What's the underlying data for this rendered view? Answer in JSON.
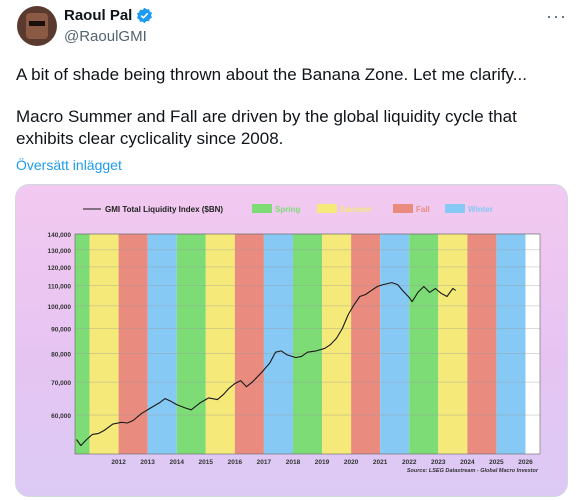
{
  "tweet": {
    "author_name": "Raoul Pal",
    "handle": "@RaoulGMI",
    "more_glyph": "···",
    "text_line1": "A bit of shade being thrown about the Banana Zone. Let me clarify...",
    "text_line2": "Macro Summer and Fall are driven by the global liquidity cycle that exhibits clear cyclicality since 2008.",
    "translate_label": "Översätt inlägget"
  },
  "colors": {
    "verified": "#1d9bf0",
    "spring": "#7edc77",
    "summer": "#f5e97a",
    "fall": "#e98b7f",
    "winter": "#86c9f5",
    "line": "#1a1a1a"
  },
  "chart_data": {
    "type": "line",
    "title": "GMI Total Liquidity Index ($BN)",
    "legend": [
      {
        "name": "Spring",
        "color": "#7edc77"
      },
      {
        "name": "Summer",
        "color": "#f5e97a"
      },
      {
        "name": "Fall",
        "color": "#e98b7f"
      },
      {
        "name": "Winter",
        "color": "#86c9f5"
      }
    ],
    "legend_placement": "top",
    "source": "Source: LSEG Datastream - Global Macro Investor",
    "y_scale": "log",
    "ylim": [
      50000,
      140000
    ],
    "yticks": [
      140000,
      130000,
      120000,
      110000,
      100000,
      90000,
      80000,
      70000,
      60000
    ],
    "ytick_labels": [
      "140,000",
      "130,000",
      "120,000",
      "110,000",
      "100,000",
      "90,000",
      "80,000",
      "70,000",
      "60,000"
    ],
    "xlim": [
      2011.0,
      2027.0
    ],
    "xticks": [
      2012,
      2013,
      2014,
      2015,
      2016,
      2017,
      2018,
      2019,
      2020,
      2021,
      2022,
      2023,
      2024,
      2025,
      2026
    ],
    "grid": true,
    "seasons": [
      {
        "season": "spring",
        "start": 2011.0,
        "end": 2011.5
      },
      {
        "season": "summer",
        "start": 2011.5,
        "end": 2012.5
      },
      {
        "season": "fall",
        "start": 2012.5,
        "end": 2013.5
      },
      {
        "season": "winter",
        "start": 2013.5,
        "end": 2014.5
      },
      {
        "season": "spring",
        "start": 2014.5,
        "end": 2015.5
      },
      {
        "season": "summer",
        "start": 2015.5,
        "end": 2016.5
      },
      {
        "season": "fall",
        "start": 2016.5,
        "end": 2017.5
      },
      {
        "season": "winter",
        "start": 2017.5,
        "end": 2018.5
      },
      {
        "season": "spring",
        "start": 2018.5,
        "end": 2019.5
      },
      {
        "season": "summer",
        "start": 2019.5,
        "end": 2020.5
      },
      {
        "season": "fall",
        "start": 2020.5,
        "end": 2021.5
      },
      {
        "season": "winter",
        "start": 2021.5,
        "end": 2022.5
      },
      {
        "season": "spring",
        "start": 2022.5,
        "end": 2023.5
      },
      {
        "season": "summer",
        "start": 2023.5,
        "end": 2024.5
      },
      {
        "season": "fall",
        "start": 2024.5,
        "end": 2025.5
      },
      {
        "season": "winter",
        "start": 2025.5,
        "end": 2026.5
      }
    ],
    "series": [
      {
        "points": [
          [
            2011.05,
            53500
          ],
          [
            2011.2,
            52000
          ],
          [
            2011.4,
            53500
          ],
          [
            2011.6,
            54800
          ],
          [
            2011.8,
            55000
          ],
          [
            2012.0,
            55800
          ],
          [
            2012.3,
            57500
          ],
          [
            2012.6,
            58000
          ],
          [
            2012.8,
            57800
          ],
          [
            2013.0,
            58500
          ],
          [
            2013.3,
            60500
          ],
          [
            2013.6,
            62000
          ],
          [
            2013.9,
            63500
          ],
          [
            2014.1,
            64800
          ],
          [
            2014.3,
            64000
          ],
          [
            2014.5,
            63000
          ],
          [
            2014.8,
            62000
          ],
          [
            2015.0,
            61500
          ],
          [
            2015.3,
            63500
          ],
          [
            2015.6,
            65000
          ],
          [
            2015.9,
            64500
          ],
          [
            2016.1,
            66000
          ],
          [
            2016.3,
            68000
          ],
          [
            2016.5,
            69500
          ],
          [
            2016.7,
            70500
          ],
          [
            2016.9,
            68500
          ],
          [
            2017.1,
            70000
          ],
          [
            2017.4,
            73000
          ],
          [
            2017.7,
            76500
          ],
          [
            2017.9,
            80500
          ],
          [
            2018.1,
            81000
          ],
          [
            2018.3,
            79500
          ],
          [
            2018.6,
            78500
          ],
          [
            2018.8,
            79000
          ],
          [
            2019.0,
            80500
          ],
          [
            2019.3,
            81000
          ],
          [
            2019.6,
            82000
          ],
          [
            2019.8,
            83500
          ],
          [
            2020.0,
            86000
          ],
          [
            2020.2,
            90000
          ],
          [
            2020.4,
            96000
          ],
          [
            2020.6,
            100500
          ],
          [
            2020.8,
            104500
          ],
          [
            2021.0,
            105500
          ],
          [
            2021.2,
            107500
          ],
          [
            2021.4,
            109500
          ],
          [
            2021.6,
            110500
          ],
          [
            2021.9,
            111500
          ],
          [
            2022.1,
            110500
          ],
          [
            2022.3,
            107000
          ],
          [
            2022.5,
            104000
          ],
          [
            2022.6,
            102000
          ],
          [
            2022.8,
            106500
          ],
          [
            2023.0,
            109500
          ],
          [
            2023.2,
            106500
          ],
          [
            2023.4,
            108500
          ],
          [
            2023.6,
            106000
          ],
          [
            2023.8,
            104500
          ],
          [
            2024.0,
            108500
          ],
          [
            2024.1,
            107500
          ]
        ]
      }
    ]
  }
}
